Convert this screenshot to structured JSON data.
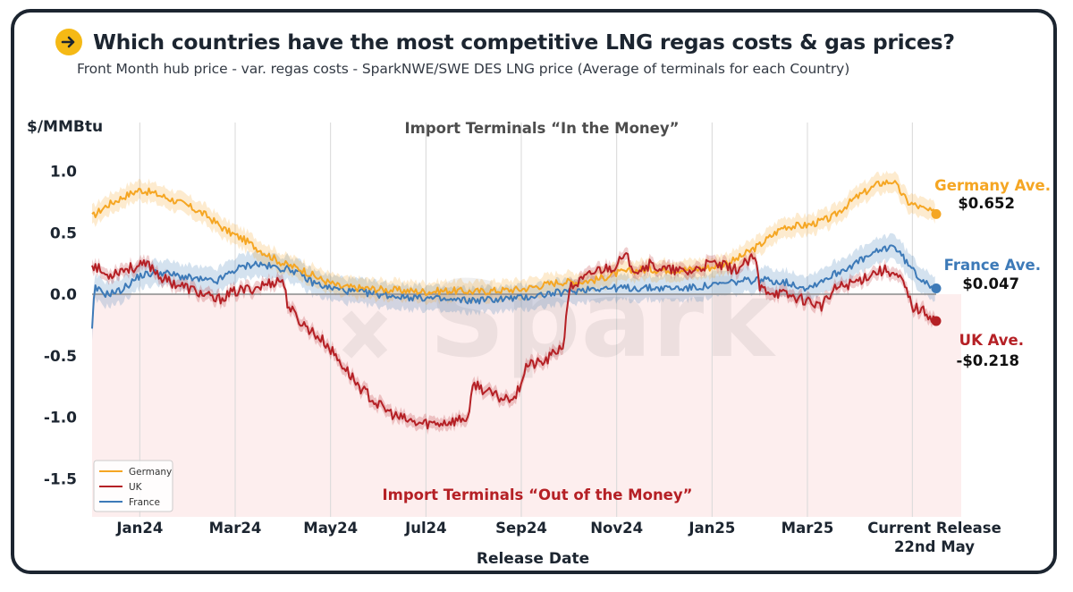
{
  "title": "Which countries have the most competitive LNG regas costs & gas prices?",
  "subtitle": "Front Month hub price - var. regas costs - SparkNWE/SWE DES LNG price (Average of terminals for each Country)",
  "colors": {
    "germany": "#f5a623",
    "uk": "#b52025",
    "france": "#3d7ab8",
    "badge": "#f5b915",
    "negative_zone": "#fdeeee"
  },
  "watermark": "Spark",
  "chart_data": {
    "type": "line",
    "ylabel": "$/MMBtu",
    "xlabel": "Release Date",
    "ylim": [
      -1.8,
      1.3
    ],
    "yticks": [
      1.0,
      0.5,
      0.0,
      -0.5,
      -1.0,
      -1.5
    ],
    "ytick_labels": [
      "1.0",
      "0.5",
      "0.0",
      "-0.5",
      "-1.0",
      "-1.5"
    ],
    "xlim_months": [
      0,
      17.7
    ],
    "xticks": [
      {
        "m": 1,
        "label": "Jan24"
      },
      {
        "m": 3,
        "label": "Mar24"
      },
      {
        "m": 5,
        "label": "May24"
      },
      {
        "m": 7,
        "label": "Jul24"
      },
      {
        "m": 9,
        "label": "Sep24"
      },
      {
        "m": 11,
        "label": "Nov24"
      },
      {
        "m": 13,
        "label": "Jan25"
      },
      {
        "m": 15,
        "label": "Mar25"
      }
    ],
    "current_release_m": 17.2,
    "current_release_label_1": "Current Release",
    "current_release_label_2": "22nd May",
    "annotation_top": "Import Terminals “In the Money”",
    "annotation_bottom": "Import Terminals “Out of the Money”",
    "series": [
      {
        "name": "Germany",
        "key": "germany",
        "end_label": "Germany Ave.",
        "end_value_label": "$0.652",
        "band": 0.08,
        "points": [
          [
            0,
            0.63
          ],
          [
            0.3,
            0.72
          ],
          [
            0.7,
            0.8
          ],
          [
            1.0,
            0.85
          ],
          [
            1.3,
            0.82
          ],
          [
            1.6,
            0.78
          ],
          [
            2.0,
            0.72
          ],
          [
            2.4,
            0.64
          ],
          [
            2.8,
            0.52
          ],
          [
            3.2,
            0.44
          ],
          [
            3.6,
            0.34
          ],
          [
            4.0,
            0.25
          ],
          [
            4.4,
            0.2
          ],
          [
            4.8,
            0.12
          ],
          [
            5.2,
            0.06
          ],
          [
            5.6,
            0.05
          ],
          [
            6.0,
            0.04
          ],
          [
            6.5,
            0.03
          ],
          [
            7.0,
            0.02
          ],
          [
            7.5,
            0.03
          ],
          [
            8.0,
            0.02
          ],
          [
            8.5,
            0.03
          ],
          [
            9.0,
            0.04
          ],
          [
            9.4,
            0.07
          ],
          [
            9.8,
            0.1
          ],
          [
            10.2,
            0.1
          ],
          [
            10.6,
            0.12
          ],
          [
            11.0,
            0.17
          ],
          [
            11.5,
            0.2
          ],
          [
            12.0,
            0.2
          ],
          [
            12.5,
            0.2
          ],
          [
            13.0,
            0.22
          ],
          [
            13.5,
            0.28
          ],
          [
            14.0,
            0.4
          ],
          [
            14.5,
            0.55
          ],
          [
            15.0,
            0.56
          ],
          [
            15.5,
            0.62
          ],
          [
            16.0,
            0.78
          ],
          [
            16.5,
            0.9
          ],
          [
            16.8,
            0.92
          ],
          [
            17.1,
            0.75
          ],
          [
            17.4,
            0.7
          ],
          [
            17.7,
            0.652
          ]
        ]
      },
      {
        "name": "UK",
        "key": "uk",
        "end_label": "UK Ave.",
        "end_value_label": "-$0.218",
        "band": 0.05,
        "points": [
          [
            0,
            0.25
          ],
          [
            0.3,
            0.15
          ],
          [
            0.6,
            0.2
          ],
          [
            0.9,
            0.22
          ],
          [
            1.2,
            0.24
          ],
          [
            1.5,
            0.12
          ],
          [
            1.8,
            0.08
          ],
          [
            2.2,
            0.02
          ],
          [
            2.6,
            -0.05
          ],
          [
            3.0,
            0.02
          ],
          [
            3.4,
            0.05
          ],
          [
            3.8,
            0.1
          ],
          [
            4.0,
            0.12
          ],
          [
            4.1,
            -0.08
          ],
          [
            4.3,
            -0.2
          ],
          [
            4.6,
            -0.3
          ],
          [
            4.9,
            -0.4
          ],
          [
            5.2,
            -0.55
          ],
          [
            5.6,
            -0.75
          ],
          [
            6.0,
            -0.9
          ],
          [
            6.4,
            -1.0
          ],
          [
            6.8,
            -1.05
          ],
          [
            7.2,
            -1.05
          ],
          [
            7.6,
            -1.03
          ],
          [
            7.9,
            -1.0
          ],
          [
            8.0,
            -0.72
          ],
          [
            8.3,
            -0.8
          ],
          [
            8.6,
            -0.85
          ],
          [
            8.9,
            -0.82
          ],
          [
            9.1,
            -0.58
          ],
          [
            9.5,
            -0.55
          ],
          [
            9.9,
            -0.4
          ],
          [
            10.0,
            0.05
          ],
          [
            10.3,
            0.12
          ],
          [
            10.6,
            0.2
          ],
          [
            10.9,
            0.22
          ],
          [
            11.2,
            0.3
          ],
          [
            11.4,
            0.2
          ],
          [
            11.7,
            0.24
          ],
          [
            12.0,
            0.2
          ],
          [
            12.5,
            0.18
          ],
          [
            13.0,
            0.25
          ],
          [
            13.5,
            0.2
          ],
          [
            13.9,
            0.3
          ],
          [
            14.0,
            0.05
          ],
          [
            14.5,
            0.0
          ],
          [
            15.0,
            -0.05
          ],
          [
            15.3,
            -0.1
          ],
          [
            15.6,
            0.05
          ],
          [
            16.0,
            0.1
          ],
          [
            16.4,
            0.18
          ],
          [
            16.7,
            0.2
          ],
          [
            17.0,
            0.1
          ],
          [
            17.2,
            -0.1
          ],
          [
            17.5,
            -0.15
          ],
          [
            17.7,
            -0.218
          ]
        ]
      },
      {
        "name": "France",
        "key": "france",
        "end_label": "France Ave.",
        "end_value_label": "$0.047",
        "band": 0.1,
        "points": [
          [
            0,
            -0.3
          ],
          [
            0.05,
            0.05
          ],
          [
            0.3,
            0.0
          ],
          [
            0.6,
            0.03
          ],
          [
            1.0,
            0.15
          ],
          [
            1.4,
            0.18
          ],
          [
            1.8,
            0.15
          ],
          [
            2.2,
            0.12
          ],
          [
            2.6,
            0.1
          ],
          [
            3.0,
            0.2
          ],
          [
            3.4,
            0.25
          ],
          [
            3.8,
            0.22
          ],
          [
            4.2,
            0.2
          ],
          [
            4.6,
            0.1
          ],
          [
            5.0,
            0.05
          ],
          [
            5.5,
            0.02
          ],
          [
            6.0,
            0.0
          ],
          [
            6.5,
            -0.02
          ],
          [
            7.0,
            -0.03
          ],
          [
            7.5,
            -0.05
          ],
          [
            8.0,
            -0.05
          ],
          [
            8.5,
            -0.04
          ],
          [
            9.0,
            -0.03
          ],
          [
            9.5,
            0.0
          ],
          [
            10.0,
            0.02
          ],
          [
            10.5,
            0.05
          ],
          [
            11.0,
            0.05
          ],
          [
            11.5,
            0.05
          ],
          [
            12.0,
            0.05
          ],
          [
            12.5,
            0.05
          ],
          [
            13.0,
            0.07
          ],
          [
            13.5,
            0.1
          ],
          [
            14.0,
            0.12
          ],
          [
            14.5,
            0.1
          ],
          [
            15.0,
            0.05
          ],
          [
            15.5,
            0.15
          ],
          [
            16.0,
            0.25
          ],
          [
            16.5,
            0.35
          ],
          [
            16.8,
            0.4
          ],
          [
            17.0,
            0.3
          ],
          [
            17.3,
            0.15
          ],
          [
            17.7,
            0.047
          ]
        ]
      }
    ],
    "legend": [
      "Germany",
      "UK",
      "France"
    ],
    "legend_position": "bottom-left"
  }
}
